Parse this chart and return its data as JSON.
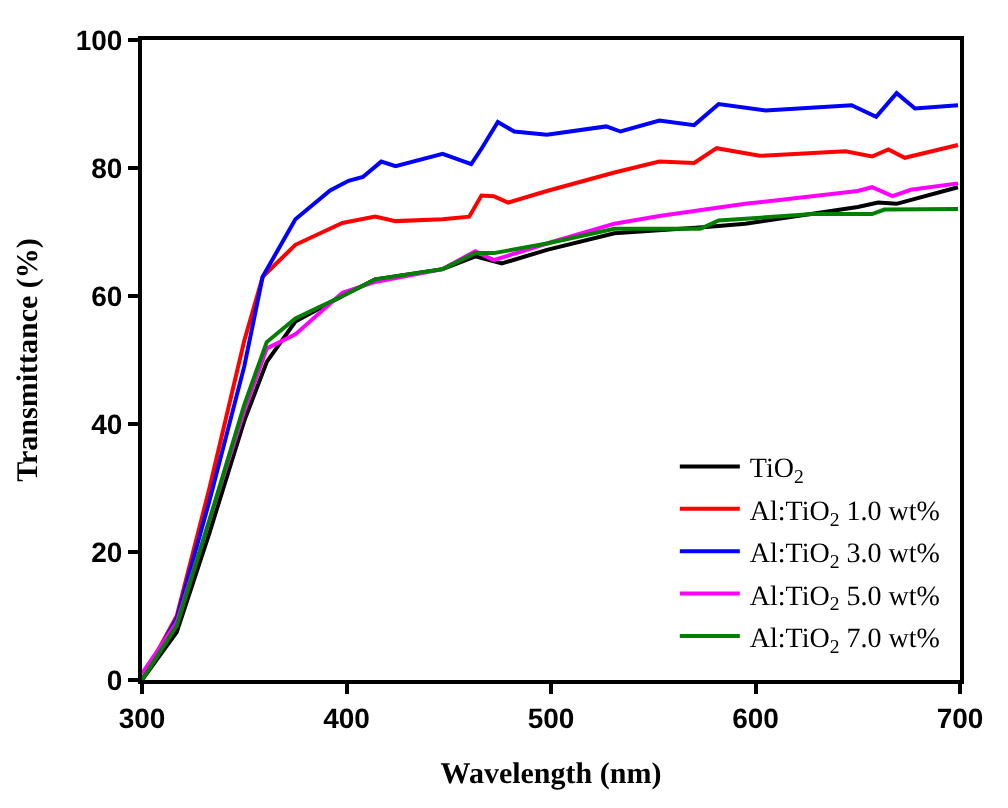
{
  "chart_data": {
    "type": "line",
    "xlabel": "Wavelength (nm)",
    "ylabel": "Transmittance (%)",
    "xlim": [
      300,
      700
    ],
    "xticks": [
      300,
      400,
      500,
      600,
      700
    ],
    "ylim": [
      0,
      100
    ],
    "yticks": [
      0,
      20,
      40,
      60,
      80,
      100
    ],
    "legend": "bottom right",
    "marker": "none",
    "line_style": "solid",
    "series": [
      {
        "name": "TiO$_{2}$",
        "color": "#000000",
        "x": [
          300,
          317,
          333,
          350,
          361,
          375,
          398,
          414,
          447,
          463,
          476,
          498,
          531,
          576,
          595,
          650,
          660,
          669,
          699
        ],
        "values": [
          0,
          7.5,
          23,
          40.5,
          49.7,
          56,
          60,
          62.6,
          64.2,
          66.2,
          65.1,
          67.2,
          69.8,
          70.8,
          71.3,
          73.9,
          74.6,
          74.4,
          77
        ]
      },
      {
        "name": "Al:TiO$_{2}$ 1.0 wt%",
        "color": "#ff0000",
        "x": [
          300,
          317,
          333,
          350,
          359,
          375,
          398,
          414,
          424,
          447,
          460,
          466,
          472,
          479,
          498,
          531,
          553,
          570,
          581,
          602,
          644,
          657,
          665,
          673,
          699
        ],
        "values": [
          0,
          10,
          30,
          53,
          63,
          68,
          71.4,
          72.4,
          71.7,
          72,
          72.4,
          75.7,
          75.6,
          74.6,
          76.4,
          79.3,
          81,
          80.8,
          83.1,
          81.9,
          82.6,
          81.8,
          82.9,
          81.6,
          83.6
        ]
      },
      {
        "name": "Al:TiO$_{2}$ 3.0 wt%",
        "color": "#0000ff",
        "x": [
          300,
          317,
          333,
          350,
          359,
          375,
          392,
          401,
          408,
          417,
          424,
          447,
          461,
          466,
          474,
          482,
          498,
          527,
          534,
          553,
          570,
          582,
          605,
          647,
          659,
          669,
          678,
          699
        ],
        "values": [
          0,
          9.6,
          28,
          49,
          63,
          72,
          76.5,
          78,
          78.6,
          81,
          80.3,
          82.2,
          80.6,
          83,
          87.2,
          85.7,
          85.2,
          86.5,
          85.7,
          87.4,
          86.7,
          90,
          89,
          89.8,
          88,
          91.7,
          89.3,
          89.8
        ]
      },
      {
        "name": "Al:TiO$_{2}$ 5.0 wt%",
        "color": "#ff00ff",
        "x": [
          300,
          317,
          333,
          350,
          361,
          375,
          398,
          414,
          447,
          463,
          472,
          498,
          531,
          553,
          595,
          650,
          657,
          667,
          676,
          699
        ],
        "values": [
          1,
          9,
          25,
          42,
          51.8,
          54,
          60.5,
          62.2,
          64.2,
          67,
          65.6,
          68.2,
          71.3,
          72.5,
          74.4,
          76.4,
          77,
          75.6,
          76.6,
          77.6
        ]
      },
      {
        "name": "Al:TiO$_{2}$ 7.0 wt%",
        "color": "#008000",
        "x": [
          300,
          317,
          333,
          350,
          361,
          375,
          398,
          414,
          447,
          463,
          472,
          498,
          531,
          573,
          582,
          628,
          657,
          663,
          699
        ],
        "values": [
          0,
          8.5,
          25,
          43,
          52.8,
          56.5,
          60,
          62.6,
          64.2,
          66.7,
          66.7,
          68.2,
          70.5,
          70.5,
          71.8,
          72.8,
          72.8,
          73.5,
          73.6
        ]
      }
    ]
  }
}
